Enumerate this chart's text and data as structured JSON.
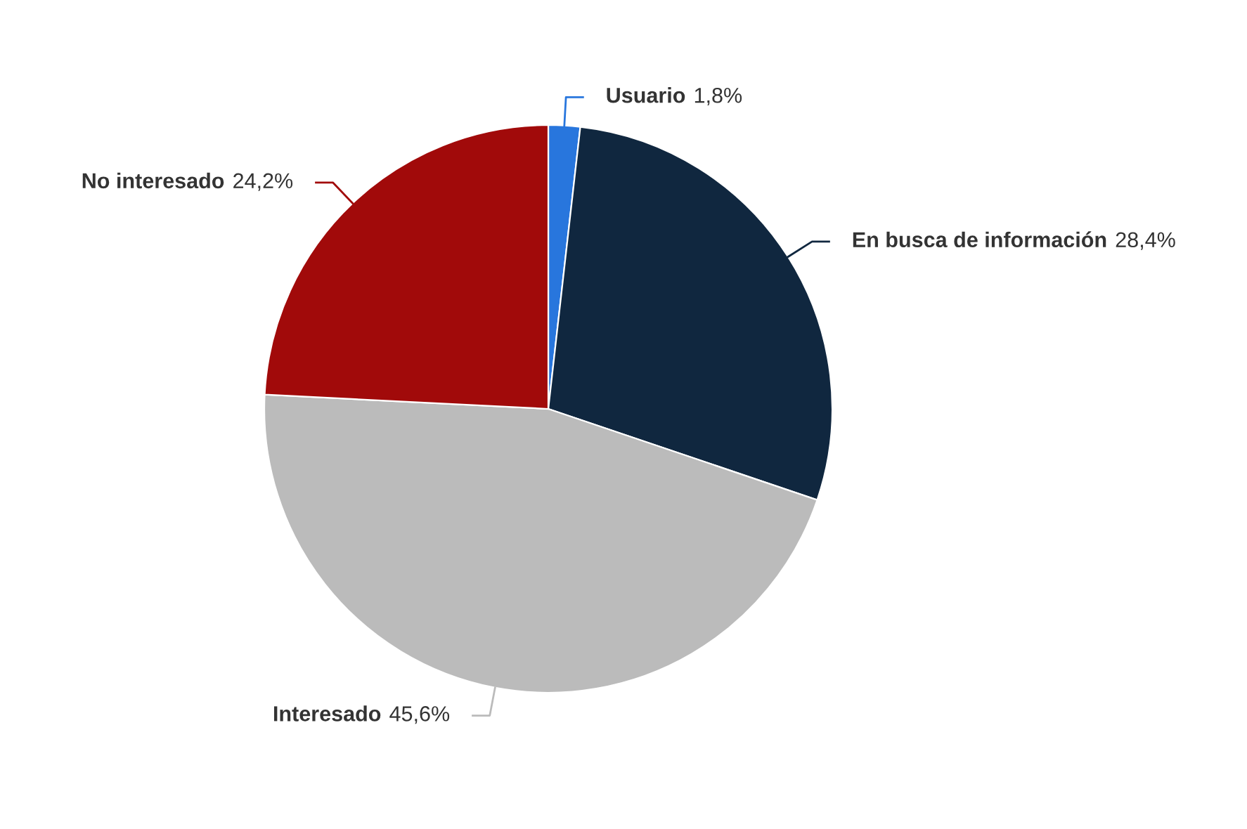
{
  "chart_data": {
    "type": "pie",
    "categories": [
      "Usuario",
      "En busca de información",
      "Interesado",
      "No interesado"
    ],
    "values": [
      1.8,
      28.4,
      45.6,
      24.2
    ],
    "value_labels": [
      "1,8%",
      "28,4%",
      "45,6%",
      "24,2%"
    ],
    "colors": [
      "#2876dd",
      "#10273f",
      "#bbbbbb",
      "#a10a0a"
    ]
  }
}
